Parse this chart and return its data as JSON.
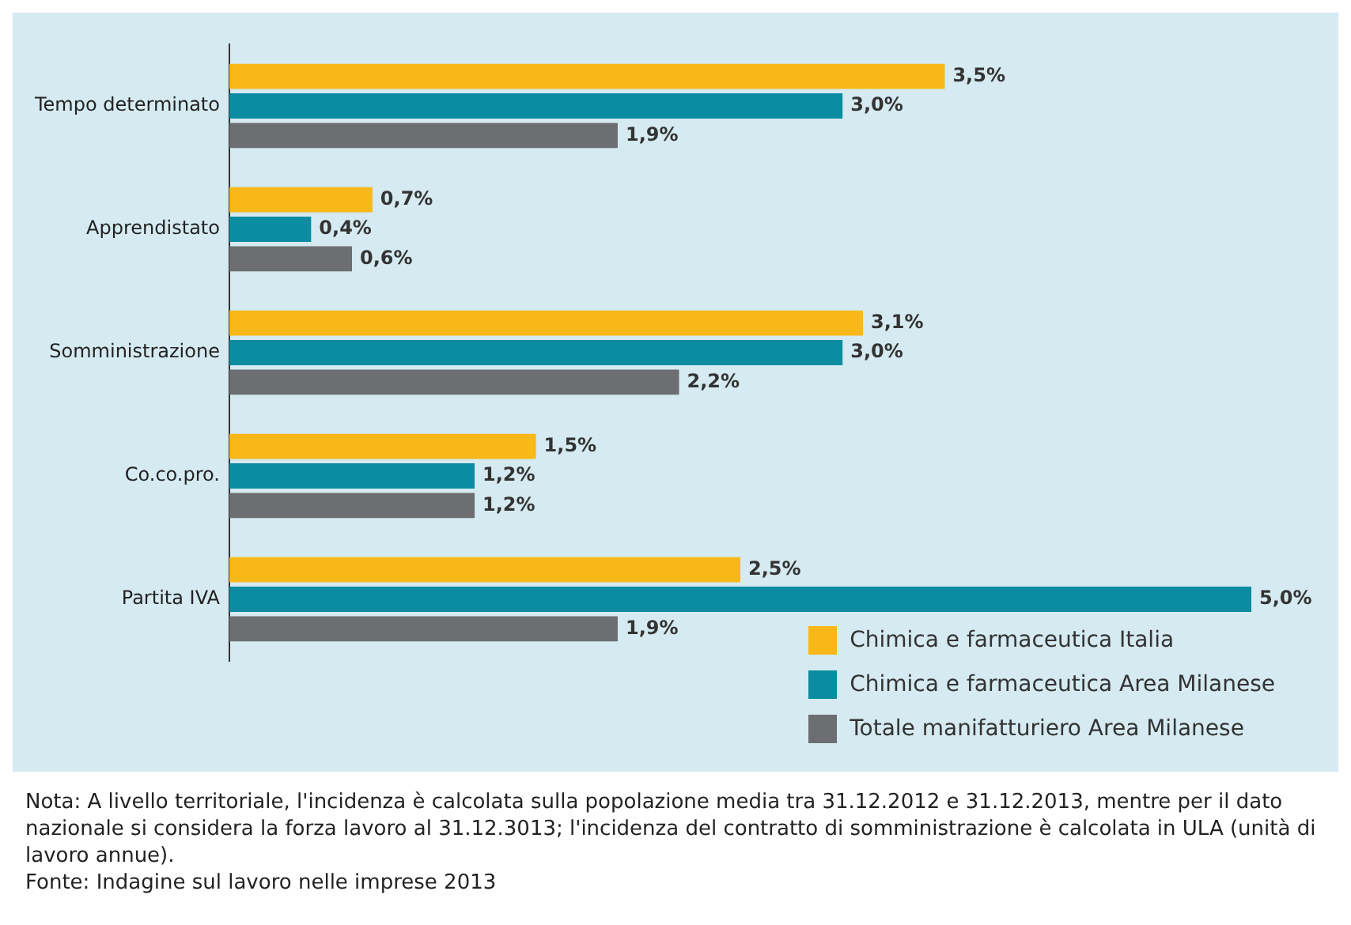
{
  "chart_data": {
    "type": "bar",
    "orientation": "horizontal",
    "categories": [
      "Tempo determinato",
      "Apprendistato",
      "Somministrazione",
      "Co.co.pro.",
      "Partita IVA"
    ],
    "series": [
      {
        "name": "Chimica e farmaceutica Italia",
        "color": "#f7b818",
        "values": [
          3.5,
          0.7,
          3.1,
          1.5,
          2.5
        ],
        "value_labels": [
          "3,5%",
          "0,7%",
          "3,1%",
          "1,5%",
          "2,5%"
        ]
      },
      {
        "name": "Chimica e farmaceutica Area Milanese",
        "color": "#0b8ca1",
        "values": [
          3.0,
          0.4,
          3.0,
          1.2,
          5.0
        ],
        "value_labels": [
          "3,0%",
          "0,4%",
          "3,0%",
          "1,2%",
          "5,0%"
        ]
      },
      {
        "name": "Totale manifatturiero Area Milanese",
        "color": "#6d6e71",
        "values": [
          1.9,
          0.6,
          2.2,
          1.2,
          1.9
        ],
        "value_labels": [
          "1,9%",
          "0,6%",
          "2,2%",
          "1,2%",
          "1,9%"
        ]
      }
    ],
    "legend": "bottom right",
    "grid": false,
    "annotations": [
      "Nota: A livello territoriale, l'incidenza è calcolata sulla popolazione media tra 31.12.2012 e 31.12.2013, mentre per il dato nazionale si considera la forza lavoro al 31.12.3013; l'incidenza del contratto di somministrazione è calcolata in ULA (unità di lavoro annue).",
      "Fonte: Indagine sul lavoro nelle imprese 2013"
    ]
  }
}
